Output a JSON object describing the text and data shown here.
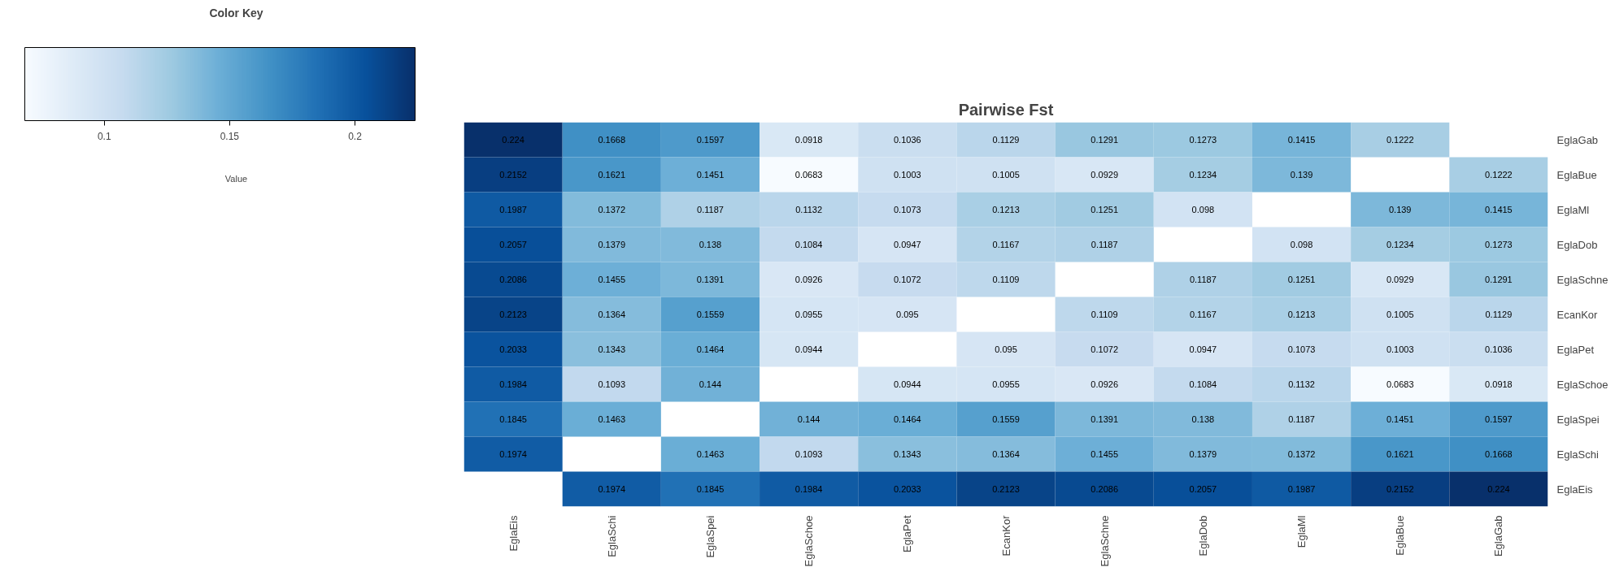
{
  "chart_data": {
    "type": "heatmap",
    "title": "Pairwise Fst",
    "clabel": "Value",
    "annotations": [
      "Color Key"
    ],
    "categories": [
      "EglaEis",
      "EglaSchi",
      "EglaSpei",
      "EglaSchoe",
      "EglaPet",
      "EcanKor",
      "EglaSchne",
      "EglaDob",
      "EglaMl",
      "EglaBue",
      "EglaGab"
    ],
    "y_categories": [
      "EglaGab",
      "EglaBue",
      "EglaMl",
      "EglaDob",
      "EglaSchne",
      "EcanKor",
      "EglaPet",
      "EglaSchoe",
      "EglaSpei",
      "EglaSchi",
      "EglaEis"
    ],
    "cells": [
      [
        0.224,
        0.1668,
        0.1597,
        0.0918,
        0.1036,
        0.1129,
        0.1291,
        0.1273,
        0.1415,
        0.1222,
        null
      ],
      [
        0.2152,
        0.1621,
        0.1451,
        0.0683,
        0.1003,
        0.1005,
        0.0929,
        0.1234,
        0.139,
        null,
        0.1222
      ],
      [
        0.1987,
        0.1372,
        0.1187,
        0.1132,
        0.1073,
        0.1213,
        0.1251,
        0.098,
        null,
        0.139,
        0.1415
      ],
      [
        0.2057,
        0.1379,
        0.138,
        0.1084,
        0.0947,
        0.1167,
        0.1187,
        null,
        0.098,
        0.1234,
        0.1273
      ],
      [
        0.2086,
        0.1455,
        0.1391,
        0.0926,
        0.1072,
        0.1109,
        null,
        0.1187,
        0.1251,
        0.0929,
        0.1291
      ],
      [
        0.2123,
        0.1364,
        0.1559,
        0.0955,
        0.095,
        null,
        0.1109,
        0.1167,
        0.1213,
        0.1005,
        0.1129
      ],
      [
        0.2033,
        0.1343,
        0.1464,
        0.0944,
        null,
        0.095,
        0.1072,
        0.0947,
        0.1073,
        0.1003,
        0.1036
      ],
      [
        0.1984,
        0.1093,
        0.144,
        null,
        0.0944,
        0.0955,
        0.0926,
        0.1084,
        0.1132,
        0.0683,
        0.0918
      ],
      [
        0.1845,
        0.1463,
        null,
        0.144,
        0.1464,
        0.1559,
        0.1391,
        0.138,
        0.1187,
        0.1451,
        0.1597
      ],
      [
        0.1974,
        null,
        0.1463,
        0.1093,
        0.1343,
        0.1364,
        0.1455,
        0.1379,
        0.1372,
        0.1621,
        0.1668
      ],
      [
        null,
        0.1974,
        0.1845,
        0.1984,
        0.2033,
        0.2123,
        0.2086,
        0.2057,
        0.1987,
        0.2152,
        0.224
      ]
    ],
    "clim": [
      0.0683,
      0.224
    ],
    "cticks": [
      0.1,
      0.15,
      0.2
    ],
    "data_labels": true,
    "grid": false
  }
}
